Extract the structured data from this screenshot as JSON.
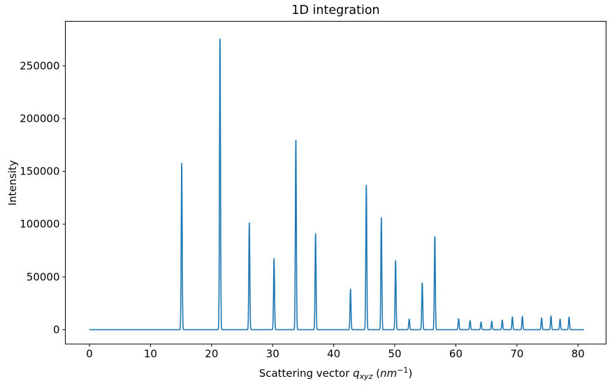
{
  "figure": {
    "background_color": "#ffffff"
  },
  "chart_data": {
    "type": "line",
    "title": "1D integration",
    "xlabel": "Scattering vector q_xyz (nm^-1)",
    "xlabel_parts": [
      {
        "t": "Scattering vector ",
        "s": ""
      },
      {
        "t": "q",
        "s": "it"
      },
      {
        "t": "xyz",
        "s": "subit"
      },
      {
        "t": " (",
        "s": ""
      },
      {
        "t": "nm",
        "s": "it"
      },
      {
        "t": "−1",
        "s": "supn"
      },
      {
        "t": ")",
        "s": ""
      }
    ],
    "ylabel": "Intensity",
    "line_color": "#1f77b4",
    "axes_color": "#000000",
    "grid": false,
    "legend": false,
    "xlim": [
      -3.95,
      84.6
    ],
    "ylim": [
      -13600,
      292200
    ],
    "x_ticks": [
      0,
      10,
      20,
      30,
      40,
      50,
      60,
      70,
      80
    ],
    "y_ticks": [
      0,
      50000,
      100000,
      150000,
      200000,
      250000
    ],
    "x_start": 0.05,
    "x_end": 80.9,
    "baseline_intensity": 0,
    "peak_sigma": 0.08,
    "sample_step": 0.02,
    "peaks": [
      {
        "q": 15.11,
        "intensity": 157500
      },
      {
        "q": 21.38,
        "intensity": 277500
      },
      {
        "q": 26.18,
        "intensity": 102000
      },
      {
        "q": 30.23,
        "intensity": 67300
      },
      {
        "q": 33.8,
        "intensity": 180800
      },
      {
        "q": 37.03,
        "intensity": 90800
      },
      {
        "q": 42.75,
        "intensity": 38300
      },
      {
        "q": 45.34,
        "intensity": 137800
      },
      {
        "q": 47.8,
        "intensity": 106800
      },
      {
        "q": 50.13,
        "intensity": 65500
      },
      {
        "q": 52.36,
        "intensity": 10000
      },
      {
        "q": 54.5,
        "intensity": 44500
      },
      {
        "q": 56.56,
        "intensity": 88800
      },
      {
        "q": 60.46,
        "intensity": 10400
      },
      {
        "q": 62.33,
        "intensity": 8600
      },
      {
        "q": 64.13,
        "intensity": 7300
      },
      {
        "q": 65.88,
        "intensity": 8100
      },
      {
        "q": 67.6,
        "intensity": 9100
      },
      {
        "q": 69.26,
        "intensity": 12100
      },
      {
        "q": 70.89,
        "intensity": 12600
      },
      {
        "q": 74.05,
        "intensity": 11200
      },
      {
        "q": 75.58,
        "intensity": 13000
      },
      {
        "q": 77.07,
        "intensity": 10100
      },
      {
        "q": 78.54,
        "intensity": 11900
      }
    ]
  }
}
